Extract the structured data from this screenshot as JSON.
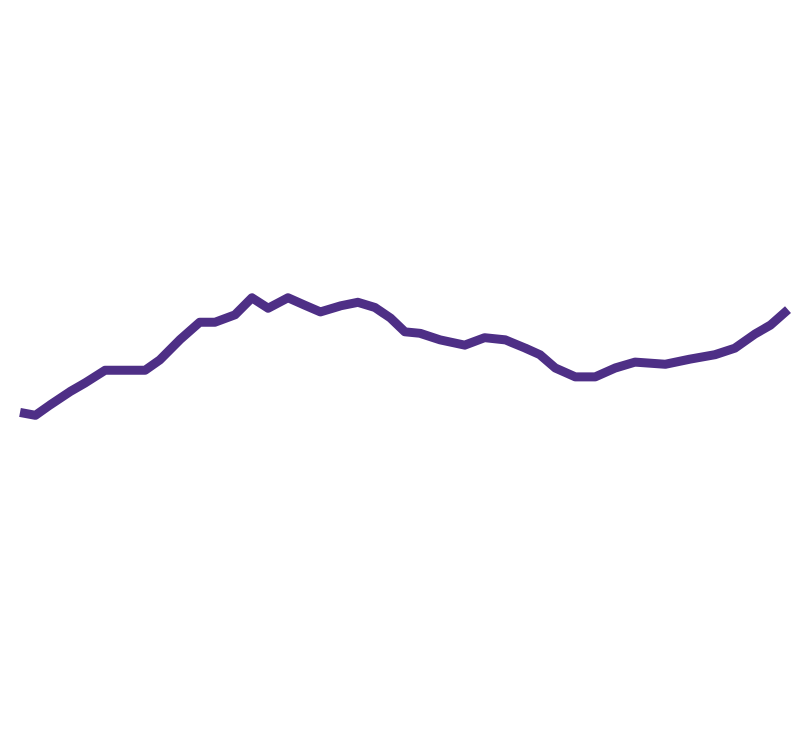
{
  "chart_data": {
    "type": "line",
    "x": [
      0,
      2,
      3.9,
      6.5,
      8.5,
      11.1,
      13.7,
      16.3,
      18.2,
      20.8,
      23.4,
      25.4,
      28,
      30.2,
      32.3,
      34.9,
      37.1,
      39.1,
      41.7,
      44,
      46.2,
      48.2,
      50.1,
      52.1,
      54.7,
      57.9,
      60.5,
      63.2,
      65.8,
      67.7,
      69.7,
      72.3,
      74.9,
      77.5,
      80.1,
      84,
      87.2,
      90.5,
      93.1,
      95.7,
      97.7,
      100
    ],
    "series": [
      {
        "color": "#4e2f86",
        "values": [
          44.2,
          43.8,
          45.2,
          47,
          48.2,
          49.9,
          49.9,
          49.9,
          51.3,
          54,
          56.4,
          56.4,
          57.4,
          59.7,
          58.3,
          59.7,
          58.7,
          57.8,
          58.6,
          59.1,
          58.4,
          57,
          55.1,
          54.9,
          54,
          53.3,
          54.3,
          54,
          52.9,
          52,
          50.2,
          49,
          49,
          50.2,
          51,
          50.7,
          51.4,
          52,
          52.9,
          54.8,
          56,
          58.1
        ]
      }
    ],
    "xlim": [
      0,
      100
    ],
    "ylim": [
      0,
      100
    ]
  }
}
